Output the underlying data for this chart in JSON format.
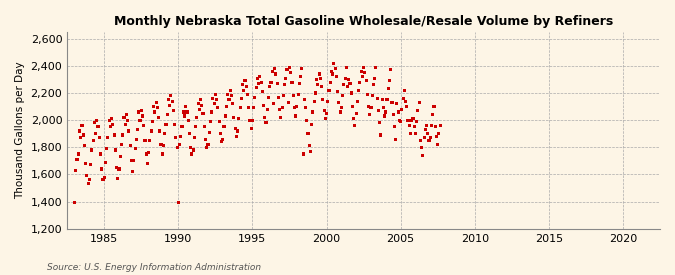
{
  "title": "Monthly Nebraska Total Gasoline Wholesale/Resale Volume by Refiners",
  "ylabel": "Thousand Gallons per Day",
  "source": "Source: U.S. Energy Information Administration",
  "background_color": "#fdf5e6",
  "plot_background_color": "#fdf5e6",
  "dot_color": "#cc0000",
  "xlim": [
    1982.5,
    2022.5
  ],
  "ylim": [
    1200,
    2650
  ],
  "yticks": [
    1200,
    1400,
    1600,
    1800,
    2000,
    2200,
    2400,
    2600
  ],
  "xticks": [
    1985,
    1990,
    1995,
    2000,
    2005,
    2010,
    2015,
    2020
  ],
  "data_years": [
    1983,
    1983,
    1983,
    1983,
    1983,
    1983,
    1983,
    1983,
    1983,
    1983,
    1983,
    1983,
    1984,
    1984,
    1984,
    1984,
    1984,
    1984,
    1984,
    1984,
    1984,
    1984,
    1984,
    1984,
    1985,
    1985,
    1985,
    1985,
    1985,
    1985,
    1985,
    1985,
    1985,
    1985,
    1985,
    1985,
    1986,
    1986,
    1986,
    1986,
    1986,
    1986,
    1986,
    1986,
    1986,
    1986,
    1986,
    1986,
    1987,
    1987,
    1987,
    1987,
    1987,
    1987,
    1987,
    1987,
    1987,
    1987,
    1987,
    1987,
    1988,
    1988,
    1988,
    1988,
    1988,
    1988,
    1988,
    1988,
    1988,
    1988,
    1988,
    1988,
    1989,
    1989,
    1989,
    1989,
    1989,
    1989,
    1989,
    1989,
    1989,
    1989,
    1989,
    1989,
    1990,
    1990,
    1990,
    1990,
    1990,
    1990,
    1990,
    1990,
    1990,
    1990,
    1990,
    1990,
    1991,
    1991,
    1991,
    1991,
    1991,
    1991,
    1991,
    1991,
    1991,
    1991,
    1991,
    1991,
    1992,
    1992,
    1992,
    1992,
    1992,
    1992,
    1992,
    1992,
    1992,
    1992,
    1992,
    1992,
    1993,
    1993,
    1993,
    1993,
    1993,
    1993,
    1993,
    1993,
    1993,
    1993,
    1993,
    1993,
    1994,
    1994,
    1994,
    1994,
    1994,
    1994,
    1994,
    1994,
    1994,
    1994,
    1994,
    1994,
    1995,
    1995,
    1995,
    1995,
    1995,
    1995,
    1995,
    1995,
    1995,
    1995,
    1995,
    1995,
    1996,
    1996,
    1996,
    1996,
    1996,
    1996,
    1996,
    1996,
    1996,
    1996,
    1996,
    1996,
    1997,
    1997,
    1997,
    1997,
    1997,
    1997,
    1997,
    1997,
    1997,
    1997,
    1997,
    1997,
    1998,
    1998,
    1998,
    1998,
    1998,
    1998,
    1998,
    1998,
    1998,
    1998,
    1998,
    1998,
    1999,
    1999,
    1999,
    1999,
    1999,
    1999,
    1999,
    1999,
    1999,
    1999,
    1999,
    1999,
    2000,
    2000,
    2000,
    2000,
    2000,
    2000,
    2000,
    2000,
    2000,
    2000,
    2000,
    2000,
    2001,
    2001,
    2001,
    2001,
    2001,
    2001,
    2001,
    2001,
    2001,
    2001,
    2001,
    2001,
    2002,
    2002,
    2002,
    2002,
    2002,
    2002,
    2002,
    2002,
    2002,
    2002,
    2002,
    2002,
    2003,
    2003,
    2003,
    2003,
    2003,
    2003,
    2003,
    2003,
    2003,
    2003,
    2003,
    2003,
    2004,
    2004,
    2004,
    2004,
    2004,
    2004,
    2004,
    2004,
    2004,
    2004,
    2004,
    2004,
    2005,
    2005,
    2005,
    2005,
    2005,
    2005,
    2005,
    2005,
    2005,
    2005,
    2005,
    2005,
    2006,
    2006,
    2006,
    2006,
    2006,
    2006,
    2006,
    2006,
    2006,
    2006,
    2006,
    2006,
    2007,
    2007,
    2007,
    2007,
    2007,
    2007,
    2007,
    2007,
    2007
  ],
  "data_months": [
    1,
    2,
    3,
    4,
    5,
    6,
    7,
    8,
    9,
    10,
    11,
    12,
    1,
    2,
    3,
    4,
    5,
    6,
    7,
    8,
    9,
    10,
    11,
    12,
    1,
    2,
    3,
    4,
    5,
    6,
    7,
    8,
    9,
    10,
    11,
    12,
    1,
    2,
    3,
    4,
    5,
    6,
    7,
    8,
    9,
    10,
    11,
    12,
    1,
    2,
    3,
    4,
    5,
    6,
    7,
    8,
    9,
    10,
    11,
    12,
    1,
    2,
    3,
    4,
    5,
    6,
    7,
    8,
    9,
    10,
    11,
    12,
    1,
    2,
    3,
    4,
    5,
    6,
    7,
    8,
    9,
    10,
    11,
    12,
    1,
    2,
    3,
    4,
    5,
    6,
    7,
    8,
    9,
    10,
    11,
    12,
    1,
    2,
    3,
    4,
    5,
    6,
    7,
    8,
    9,
    10,
    11,
    12,
    1,
    2,
    3,
    4,
    5,
    6,
    7,
    8,
    9,
    10,
    11,
    12,
    1,
    2,
    3,
    4,
    5,
    6,
    7,
    8,
    9,
    10,
    11,
    12,
    1,
    2,
    3,
    4,
    5,
    6,
    7,
    8,
    9,
    10,
    11,
    12,
    1,
    2,
    3,
    4,
    5,
    6,
    7,
    8,
    9,
    10,
    11,
    12,
    1,
    2,
    3,
    4,
    5,
    6,
    7,
    8,
    9,
    10,
    11,
    12,
    1,
    2,
    3,
    4,
    5,
    6,
    7,
    8,
    9,
    10,
    11,
    12,
    1,
    2,
    3,
    4,
    5,
    6,
    7,
    8,
    9,
    10,
    11,
    12,
    1,
    2,
    3,
    4,
    5,
    6,
    7,
    8,
    9,
    10,
    11,
    12,
    1,
    2,
    3,
    4,
    5,
    6,
    7,
    8,
    9,
    10,
    11,
    12,
    1,
    2,
    3,
    4,
    5,
    6,
    7,
    8,
    9,
    10,
    11,
    12,
    1,
    2,
    3,
    4,
    5,
    6,
    7,
    8,
    9,
    10,
    11,
    12,
    1,
    2,
    3,
    4,
    5,
    6,
    7,
    8,
    9,
    10,
    11,
    12,
    1,
    2,
    3,
    4,
    5,
    6,
    7,
    8,
    9,
    10,
    11,
    12,
    1,
    2,
    3,
    4,
    5,
    6,
    7,
    8,
    9,
    10,
    11,
    12,
    1,
    2,
    3,
    4,
    5,
    6,
    7,
    8,
    9,
    10,
    11,
    12,
    1,
    2,
    3,
    4,
    5,
    6,
    7,
    8,
    9
  ],
  "data_y": [
    1390,
    1630,
    1710,
    1750,
    1920,
    1870,
    1960,
    1890,
    1810,
    1680,
    1590,
    1530,
    1560,
    1670,
    1780,
    1850,
    1980,
    1900,
    2000,
    1950,
    1870,
    1750,
    1640,
    1560,
    1580,
    1690,
    1790,
    1870,
    2000,
    1950,
    2010,
    1970,
    1890,
    1780,
    1650,
    1570,
    1640,
    1730,
    1820,
    1890,
    2020,
    1970,
    2040,
    2000,
    1920,
    1810,
    1700,
    1620,
    1700,
    1790,
    1860,
    1930,
    2060,
    2000,
    2070,
    2030,
    1960,
    1850,
    1750,
    1680,
    1760,
    1850,
    1920,
    1990,
    2100,
    2060,
    2130,
    2090,
    2020,
    1920,
    1820,
    1750,
    1810,
    1900,
    1970,
    2040,
    2150,
    2110,
    2180,
    2140,
    2070,
    1970,
    1870,
    1800,
    1390,
    1820,
    1880,
    1950,
    2060,
    2030,
    2100,
    2060,
    2000,
    1900,
    1800,
    1750,
    1780,
    1870,
    1950,
    2020,
    2120,
    2080,
    2150,
    2110,
    2050,
    1950,
    1860,
    1800,
    1820,
    1910,
    1990,
    2060,
    2160,
    2120,
    2190,
    2150,
    2090,
    1990,
    1900,
    1840,
    1860,
    1950,
    2030,
    2100,
    2190,
    2150,
    2220,
    2180,
    2120,
    2020,
    1940,
    1880,
    1920,
    2010,
    2090,
    2160,
    2260,
    2220,
    2290,
    2250,
    2190,
    2090,
    2000,
    1940,
    2000,
    2090,
    2170,
    2240,
    2310,
    2270,
    2320,
    2280,
    2210,
    2110,
    2020,
    1980,
    2080,
    2170,
    2250,
    2280,
    2360,
    2120,
    2380,
    2340,
    2270,
    2170,
    2080,
    2020,
    2090,
    2180,
    2260,
    2310,
    2370,
    2130,
    2390,
    2350,
    2280,
    2180,
    2090,
    2030,
    2100,
    2190,
    2270,
    2320,
    2380,
    1750,
    2150,
    2090,
    2000,
    1900,
    1810,
    1770,
    1970,
    2060,
    2140,
    2200,
    2300,
    2260,
    2340,
    2310,
    2250,
    2150,
    2070,
    2010,
    2050,
    2140,
    2220,
    2280,
    2360,
    2340,
    2420,
    2380,
    2320,
    2210,
    2130,
    2060,
    2090,
    2180,
    2260,
    2310,
    2390,
    2250,
    2300,
    2270,
    2200,
    2100,
    2010,
    1960,
    2050,
    2140,
    2220,
    2280,
    2360,
    2320,
    2390,
    2350,
    2290,
    2190,
    2100,
    2040,
    2090,
    2180,
    2260,
    2310,
    2390,
    2160,
    2070,
    1980,
    1890,
    2150,
    2090,
    2030,
    2060,
    2150,
    2230,
    2290,
    2370,
    2130,
    2040,
    1950,
    1860,
    2120,
    2060,
    2000,
    1990,
    2080,
    2160,
    2220,
    2140,
    2100,
    2000,
    1960,
    1900,
    2000,
    2010,
    1950,
    1900,
    1990,
    2070,
    2130,
    1850,
    1800,
    1740,
    1870,
    1930,
    1960,
    1900,
    1850,
    1870,
    1960,
    2040,
    2100,
    1950,
    1880,
    1820,
    1900,
    1960
  ]
}
